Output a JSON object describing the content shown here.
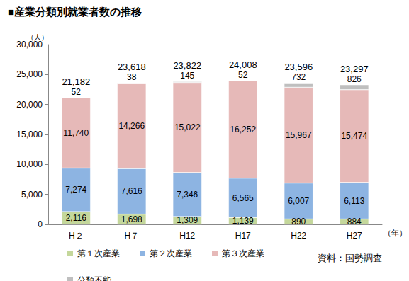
{
  "chart_data": {
    "type": "bar",
    "title": "■産業分類別就業者数の推移",
    "categories": [
      "H２",
      "H７",
      "H12",
      "H17",
      "H22",
      "H27"
    ],
    "x_label": "（年）",
    "y_label": "（人）",
    "source": "資料：国勢調査",
    "stacked": true,
    "data_labels": true,
    "grid": false,
    "legend": "bottom",
    "ylim": [
      0,
      30000
    ],
    "yticks": [
      0,
      {
        "value": 5000,
        "label": "5,000"
      },
      {
        "value": 10000,
        "label": "10,000"
      },
      {
        "value": 15000,
        "label": "15,000"
      },
      {
        "value": 20000,
        "label": "20,000"
      },
      {
        "value": 25000,
        "label": "25,000"
      },
      {
        "value": 30000,
        "label": "30,000"
      }
    ],
    "series": [
      {
        "name": "第１次産業",
        "color": "#c4d79b",
        "values": [
          2116,
          1698,
          1309,
          1139,
          890,
          884
        ],
        "value_labels": [
          "2,116",
          "1,698",
          "1,309",
          "1,139",
          "890",
          "884"
        ]
      },
      {
        "name": "第２次産業",
        "color": "#8db4e2",
        "values": [
          7274,
          7616,
          7346,
          6565,
          6007,
          6113
        ],
        "value_labels": [
          "7,274",
          "7,616",
          "7,346",
          "6,565",
          "6,007",
          "6,113"
        ]
      },
      {
        "name": "第３次産業",
        "color": "#e6b9b8",
        "values": [
          11740,
          14266,
          15022,
          16252,
          15967,
          15474
        ],
        "value_labels": [
          "11,740",
          "14,266",
          "15,022",
          "16,252",
          "15,967",
          "15,474"
        ]
      },
      {
        "name": "分類不能",
        "color": "#bfbfbf",
        "values": [
          52,
          38,
          145,
          52,
          732,
          826
        ],
        "value_labels": [
          "52",
          "38",
          "145",
          "52",
          "732",
          "826"
        ]
      }
    ],
    "totals": [
      21182,
      23618,
      23822,
      24008,
      23596,
      23297
    ],
    "total_labels": [
      "21,182",
      "23,618",
      "23,822",
      "24,008",
      "23,596",
      "23,297"
    ]
  }
}
